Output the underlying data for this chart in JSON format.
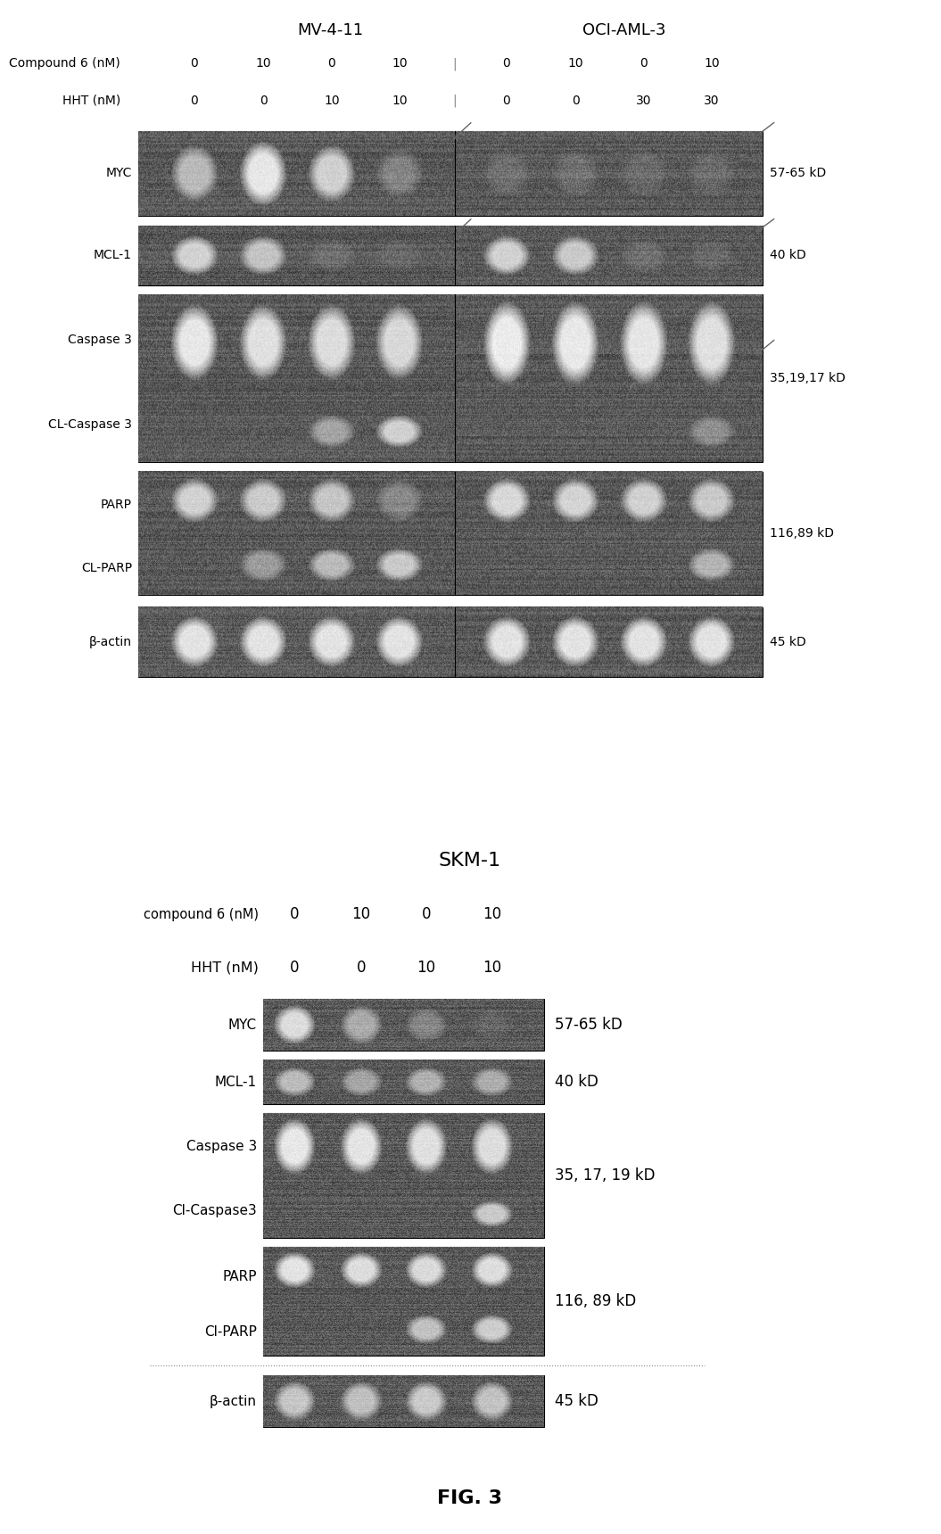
{
  "panel1": {
    "title_left": "MV-4-11",
    "title_right": "OCI-AML-3",
    "compound_label": "Compound 6 (nM)",
    "hht_label": "HHT (nM)",
    "compound_values_left": [
      "0",
      "10",
      "0",
      "10"
    ],
    "hht_values_left": [
      "0",
      "0",
      "10",
      "10"
    ],
    "compound_values_right": [
      "0",
      "10",
      "0",
      "10"
    ],
    "hht_values_right": [
      "0",
      "0",
      "30",
      "30"
    ],
    "kd_myc": "57-65 kD",
    "kd_mcl1": "40 kD",
    "kd_casp": "35,19,17 kD",
    "kd_parp": "116,89 kD",
    "kd_bactin": "45 kD"
  },
  "panel2": {
    "title": "SKM-1",
    "compound_label": "compound 6 (nM)",
    "hht_label": "HHT (nM)",
    "compound_values": [
      "0",
      "10",
      "0",
      "10"
    ],
    "hht_values": [
      "0",
      "0",
      "10",
      "10"
    ],
    "kd_myc": "57-65 kD",
    "kd_mcl1": "40 kD",
    "kd_casp": "35, 17, 19 kD",
    "kd_parp": "116, 89 kD",
    "kd_bactin": "45 kD"
  },
  "fig_label": "FIG. 3"
}
